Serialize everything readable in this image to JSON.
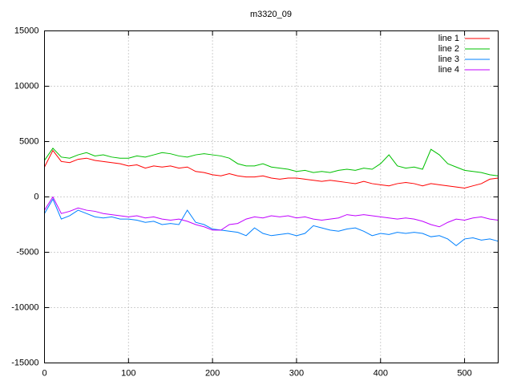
{
  "chart_data": {
    "type": "line",
    "title": "m3320_09",
    "x": [
      0,
      10,
      20,
      30,
      40,
      50,
      60,
      70,
      80,
      90,
      100,
      110,
      120,
      130,
      140,
      150,
      160,
      170,
      180,
      190,
      200,
      210,
      220,
      230,
      240,
      250,
      260,
      270,
      280,
      290,
      300,
      310,
      320,
      330,
      340,
      350,
      360,
      370,
      380,
      390,
      400,
      410,
      420,
      430,
      440,
      450,
      460,
      470,
      480,
      490,
      500,
      510,
      520,
      530,
      540
    ],
    "series": [
      {
        "name": "line 1",
        "color": "#ff0000",
        "values": [
          2700,
          4200,
          3200,
          3100,
          3400,
          3500,
          3300,
          3200,
          3100,
          3000,
          2800,
          2900,
          2600,
          2800,
          2700,
          2800,
          2600,
          2700,
          2300,
          2200,
          2000,
          1900,
          2100,
          1900,
          1800,
          1800,
          1900,
          1700,
          1600,
          1700,
          1700,
          1600,
          1500,
          1400,
          1500,
          1400,
          1300,
          1200,
          1400,
          1200,
          1100,
          1000,
          1200,
          1300,
          1200,
          1000,
          1200,
          1100,
          1000,
          900,
          800,
          1000,
          1200,
          1600,
          1700
        ]
      },
      {
        "name": "line 2",
        "color": "#00c000",
        "values": [
          3300,
          4400,
          3600,
          3500,
          3800,
          4000,
          3700,
          3800,
          3600,
          3500,
          3500,
          3700,
          3600,
          3800,
          4000,
          3900,
          3700,
          3600,
          3800,
          3900,
          3800,
          3700,
          3500,
          3000,
          2800,
          2800,
          3000,
          2700,
          2600,
          2500,
          2300,
          2400,
          2200,
          2300,
          2200,
          2400,
          2500,
          2400,
          2600,
          2500,
          3000,
          3800,
          2800,
          2600,
          2700,
          2500,
          4300,
          3800,
          3000,
          2700,
          2400,
          2300,
          2200,
          2000,
          1900
        ]
      },
      {
        "name": "line 3",
        "color": "#0080ff",
        "values": [
          -1500,
          -200,
          -2000,
          -1700,
          -1200,
          -1500,
          -1800,
          -1900,
          -1800,
          -2000,
          -2000,
          -2100,
          -2300,
          -2200,
          -2500,
          -2400,
          -2500,
          -1200,
          -2300,
          -2500,
          -2900,
          -3000,
          -3100,
          -3200,
          -3500,
          -2800,
          -3300,
          -3500,
          -3400,
          -3300,
          -3500,
          -3300,
          -2600,
          -2800,
          -3000,
          -3100,
          -2900,
          -2800,
          -3100,
          -3500,
          -3300,
          -3400,
          -3200,
          -3300,
          -3200,
          -3300,
          -3600,
          -3500,
          -3800,
          -4400,
          -3800,
          -3700,
          -3900,
          -3800,
          -4000
        ]
      },
      {
        "name": "line 4",
        "color": "#c000ff",
        "values": [
          -1200,
          0,
          -1500,
          -1300,
          -1000,
          -1200,
          -1300,
          -1500,
          -1600,
          -1700,
          -1800,
          -1700,
          -1900,
          -1800,
          -2000,
          -2100,
          -2000,
          -2200,
          -2500,
          -2700,
          -3000,
          -3000,
          -2500,
          -2400,
          -2000,
          -1800,
          -1900,
          -1700,
          -1800,
          -1700,
          -1900,
          -1800,
          -2000,
          -2100,
          -2000,
          -1900,
          -1600,
          -1700,
          -1600,
          -1700,
          -1800,
          -1900,
          -2000,
          -1900,
          -2000,
          -2200,
          -2500,
          -2700,
          -2300,
          -2000,
          -2100,
          -1900,
          -1800,
          -2000,
          -2100
        ]
      }
    ],
    "xlim": [
      0,
      540
    ],
    "xticks": [
      0,
      100,
      200,
      300,
      400,
      500
    ],
    "ylim": [
      -15000,
      15000
    ],
    "yticks": [
      -15000,
      -10000,
      -5000,
      0,
      5000,
      10000,
      15000
    ],
    "grid": true,
    "legend": "upper right"
  }
}
